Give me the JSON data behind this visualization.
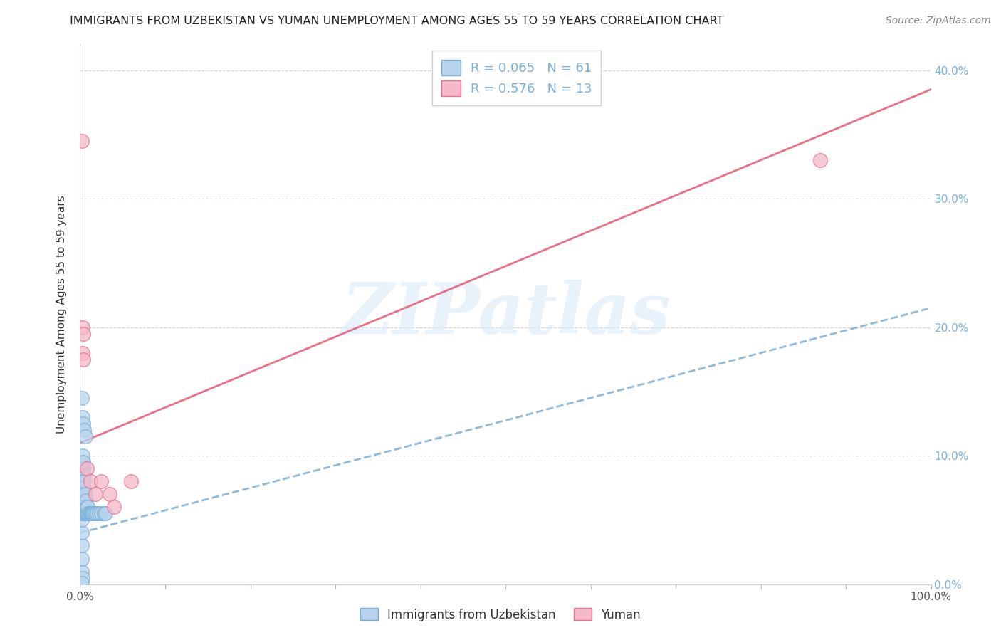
{
  "title": "IMMIGRANTS FROM UZBEKISTAN VS YUMAN UNEMPLOYMENT AMONG AGES 55 TO 59 YEARS CORRELATION CHART",
  "source": "Source: ZipAtlas.com",
  "ylabel": "Unemployment Among Ages 55 to 59 years",
  "legend_label_blue": "Immigrants from Uzbekistan",
  "legend_label_pink": "Yuman",
  "R_blue": 0.065,
  "N_blue": 61,
  "R_pink": 0.576,
  "N_pink": 13,
  "blue_fill": "#b8d4ed",
  "blue_edge": "#7ab0d8",
  "pink_fill": "#f5b8c8",
  "pink_edge": "#e87090",
  "trend_blue_color": "#7ab0d8",
  "trend_pink_color": "#e8607a",
  "watermark_color": "#d8eaf8",
  "xlim": [
    0,
    1.0
  ],
  "ylim": [
    0,
    0.42
  ],
  "xtick_positions": [
    0.0,
    0.1,
    0.2,
    0.3,
    0.4,
    0.5,
    0.6,
    0.7,
    0.8,
    0.9,
    1.0
  ],
  "xtick_labels_show": [
    true,
    false,
    false,
    false,
    false,
    false,
    false,
    false,
    false,
    false,
    true
  ],
  "ytick_positions": [
    0.0,
    0.1,
    0.2,
    0.3,
    0.4
  ],
  "ytick_labels": [
    "0.0%",
    "10.0%",
    "20.0%",
    "30.0%",
    "40.0%"
  ],
  "blue_points_x": [
    0.002,
    0.002,
    0.002,
    0.002,
    0.002,
    0.003,
    0.003,
    0.003,
    0.003,
    0.003,
    0.003,
    0.003,
    0.003,
    0.003,
    0.003,
    0.004,
    0.004,
    0.004,
    0.004,
    0.004,
    0.004,
    0.004,
    0.004,
    0.004,
    0.005,
    0.005,
    0.005,
    0.005,
    0.005,
    0.005,
    0.006,
    0.006,
    0.006,
    0.006,
    0.007,
    0.007,
    0.007,
    0.008,
    0.008,
    0.009,
    0.009,
    0.01,
    0.011,
    0.012,
    0.013,
    0.014,
    0.015,
    0.016,
    0.018,
    0.02,
    0.022,
    0.025,
    0.028,
    0.03,
    0.002,
    0.003,
    0.004,
    0.005,
    0.006,
    0.003,
    0.002
  ],
  "blue_points_y": [
    0.01,
    0.02,
    0.03,
    0.04,
    0.05,
    0.055,
    0.06,
    0.065,
    0.07,
    0.075,
    0.08,
    0.085,
    0.09,
    0.095,
    0.1,
    0.055,
    0.06,
    0.065,
    0.07,
    0.075,
    0.08,
    0.085,
    0.09,
    0.095,
    0.055,
    0.06,
    0.065,
    0.07,
    0.075,
    0.08,
    0.055,
    0.06,
    0.065,
    0.07,
    0.055,
    0.06,
    0.065,
    0.055,
    0.06,
    0.055,
    0.06,
    0.055,
    0.055,
    0.055,
    0.055,
    0.055,
    0.055,
    0.055,
    0.055,
    0.055,
    0.055,
    0.055,
    0.055,
    0.055,
    0.145,
    0.13,
    0.125,
    0.12,
    0.115,
    0.005,
    0.001
  ],
  "pink_points_x": [
    0.002,
    0.003,
    0.003,
    0.004,
    0.004,
    0.008,
    0.012,
    0.018,
    0.025,
    0.035,
    0.04,
    0.06,
    0.87
  ],
  "pink_points_y": [
    0.345,
    0.2,
    0.18,
    0.195,
    0.175,
    0.09,
    0.08,
    0.07,
    0.08,
    0.07,
    0.06,
    0.08,
    0.33
  ],
  "blue_trend_x": [
    0.0,
    1.0
  ],
  "blue_trend_y": [
    0.04,
    0.215
  ],
  "pink_trend_x": [
    0.0,
    1.0
  ],
  "pink_trend_y": [
    0.11,
    0.385
  ]
}
